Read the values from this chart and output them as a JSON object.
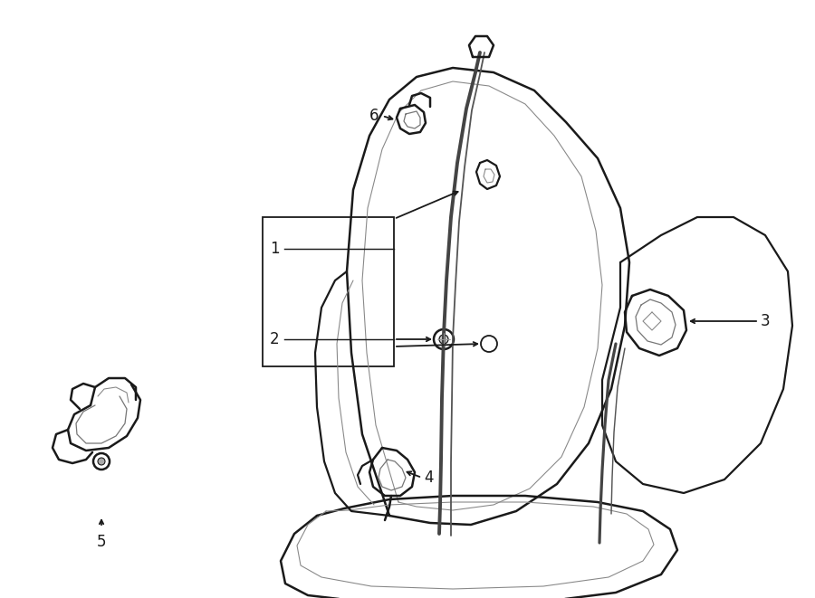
{
  "bg_color": "#ffffff",
  "line_color": "#1a1a1a",
  "line_width": 1.3,
  "fig_width": 9.0,
  "fig_height": 6.61,
  "dpi": 100,
  "font_size": 11
}
